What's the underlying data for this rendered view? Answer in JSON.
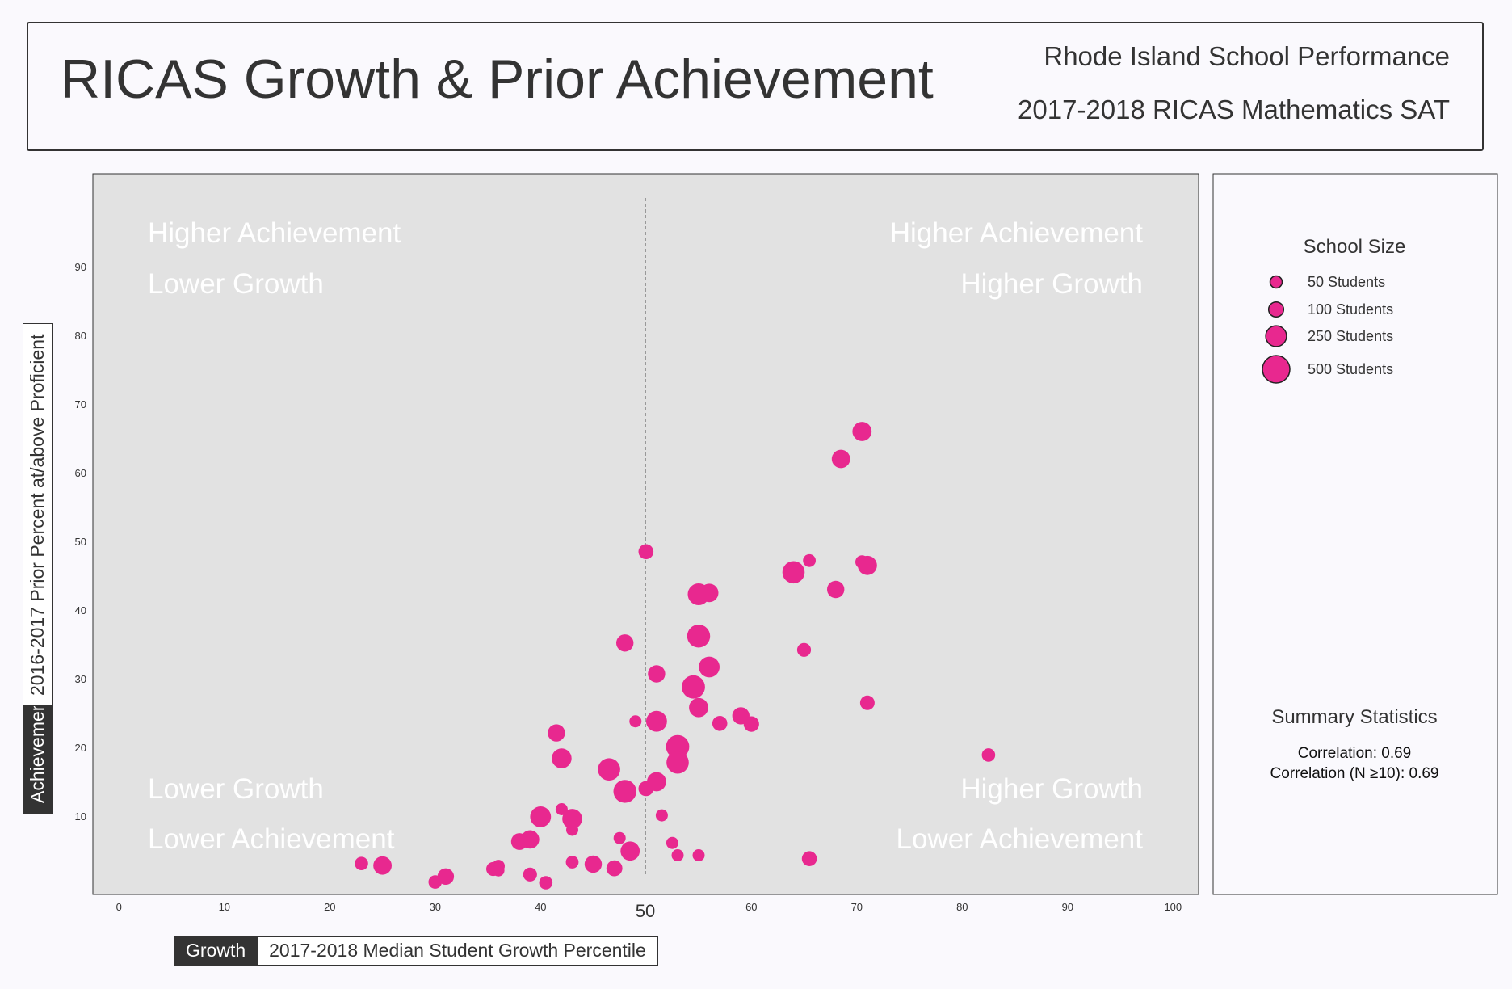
{
  "header": {
    "title": "RICAS Growth & Prior Achievement",
    "state": "Rhode Island School Performance",
    "subject": "2017-2018 RICAS Mathematics SAT"
  },
  "axes": {
    "y_tag": "Achievement",
    "y_desc": "2016-2017 Prior Percent at/above Proficient",
    "x_tag": "Growth",
    "x_desc": "2017-2018 Median Student Growth Percentile",
    "median_label": "50"
  },
  "quadrants": {
    "top_left": [
      "Higher Achievement",
      "Lower Growth"
    ],
    "top_right": [
      "Higher Achievement",
      "Higher Growth"
    ],
    "bottom_left": [
      "Lower Growth",
      "Lower Achievement"
    ],
    "bottom_right": [
      "Higher Growth",
      "Lower Achievement"
    ]
  },
  "legend": {
    "title": "School Size",
    "items": [
      {
        "label": "50 Students",
        "size": 50
      },
      {
        "label": "100 Students",
        "size": 100
      },
      {
        "label": "250 Students",
        "size": 250
      },
      {
        "label": "500 Students",
        "size": 500
      }
    ]
  },
  "summary": {
    "title": "Summary Statistics",
    "correlation": "Correlation: 0.69",
    "correlation_n": "Correlation (N ≥10): 0.69"
  },
  "colors": {
    "point": "#e8288f",
    "panel": "#e2e2e2",
    "median_line": "#999999"
  },
  "chart_data": {
    "type": "scatter",
    "xlim": [
      0,
      100
    ],
    "ylim": [
      0,
      100
    ],
    "x_ticks": [
      0,
      10,
      20,
      30,
      40,
      60,
      70,
      80,
      90,
      100
    ],
    "y_ticks": [
      10,
      20,
      30,
      40,
      50,
      60,
      70,
      80,
      90
    ],
    "median_x": 50,
    "points": [
      {
        "x": 70.5,
        "y": 66,
        "n": 200
      },
      {
        "x": 68.5,
        "y": 62,
        "n": 180
      },
      {
        "x": 50,
        "y": 48.5,
        "n": 100
      },
      {
        "x": 65.5,
        "y": 47.2,
        "n": 60
      },
      {
        "x": 64,
        "y": 45.5,
        "n": 300
      },
      {
        "x": 70.5,
        "y": 47,
        "n": 70
      },
      {
        "x": 71,
        "y": 46.5,
        "n": 200
      },
      {
        "x": 68,
        "y": 43,
        "n": 150
      },
      {
        "x": 55,
        "y": 42.3,
        "n": 280
      },
      {
        "x": 56,
        "y": 42.5,
        "n": 180
      },
      {
        "x": 48,
        "y": 35.2,
        "n": 150
      },
      {
        "x": 55,
        "y": 36.2,
        "n": 320
      },
      {
        "x": 65,
        "y": 34.2,
        "n": 80
      },
      {
        "x": 51,
        "y": 30.7,
        "n": 150
      },
      {
        "x": 56,
        "y": 31.7,
        "n": 250
      },
      {
        "x": 54.5,
        "y": 28.8,
        "n": 330
      },
      {
        "x": 55,
        "y": 25.8,
        "n": 200
      },
      {
        "x": 71,
        "y": 26.5,
        "n": 90
      },
      {
        "x": 49,
        "y": 23.8,
        "n": 50
      },
      {
        "x": 51,
        "y": 23.8,
        "n": 250
      },
      {
        "x": 57,
        "y": 23.5,
        "n": 100
      },
      {
        "x": 59,
        "y": 24.6,
        "n": 150
      },
      {
        "x": 60,
        "y": 23.4,
        "n": 110
      },
      {
        "x": 41.5,
        "y": 22.1,
        "n": 150
      },
      {
        "x": 53,
        "y": 20.1,
        "n": 330
      },
      {
        "x": 82.5,
        "y": 18.9,
        "n": 70
      },
      {
        "x": 42,
        "y": 18.4,
        "n": 220
      },
      {
        "x": 53,
        "y": 17.8,
        "n": 300
      },
      {
        "x": 46.5,
        "y": 16.8,
        "n": 300
      },
      {
        "x": 51,
        "y": 15,
        "n": 200
      },
      {
        "x": 48,
        "y": 13.6,
        "n": 320
      },
      {
        "x": 50,
        "y": 14,
        "n": 100
      },
      {
        "x": 42,
        "y": 11,
        "n": 50
      },
      {
        "x": 51.5,
        "y": 10.1,
        "n": 50
      },
      {
        "x": 40,
        "y": 9.9,
        "n": 250
      },
      {
        "x": 43,
        "y": 9.6,
        "n": 220
      },
      {
        "x": 43,
        "y": 8,
        "n": 50
      },
      {
        "x": 39,
        "y": 6.6,
        "n": 180
      },
      {
        "x": 38,
        "y": 6.3,
        "n": 140
      },
      {
        "x": 47.5,
        "y": 6.8,
        "n": 50
      },
      {
        "x": 52.5,
        "y": 6.1,
        "n": 50
      },
      {
        "x": 48.5,
        "y": 4.9,
        "n": 200
      },
      {
        "x": 53,
        "y": 4.3,
        "n": 50
      },
      {
        "x": 55,
        "y": 4.3,
        "n": 50
      },
      {
        "x": 65.5,
        "y": 3.8,
        "n": 100
      },
      {
        "x": 23,
        "y": 3.1,
        "n": 70
      },
      {
        "x": 25,
        "y": 2.8,
        "n": 180
      },
      {
        "x": 43,
        "y": 3.3,
        "n": 60
      },
      {
        "x": 45,
        "y": 3,
        "n": 150
      },
      {
        "x": 47,
        "y": 2.4,
        "n": 120
      },
      {
        "x": 36,
        "y": 2.7,
        "n": 60
      },
      {
        "x": 35.5,
        "y": 2.3,
        "n": 80
      },
      {
        "x": 36,
        "y": 2.1,
        "n": 50
      },
      {
        "x": 31,
        "y": 1.2,
        "n": 130
      },
      {
        "x": 39,
        "y": 1.5,
        "n": 80
      },
      {
        "x": 30,
        "y": 0.4,
        "n": 70
      },
      {
        "x": 40.5,
        "y": 0.3,
        "n": 70
      }
    ]
  }
}
